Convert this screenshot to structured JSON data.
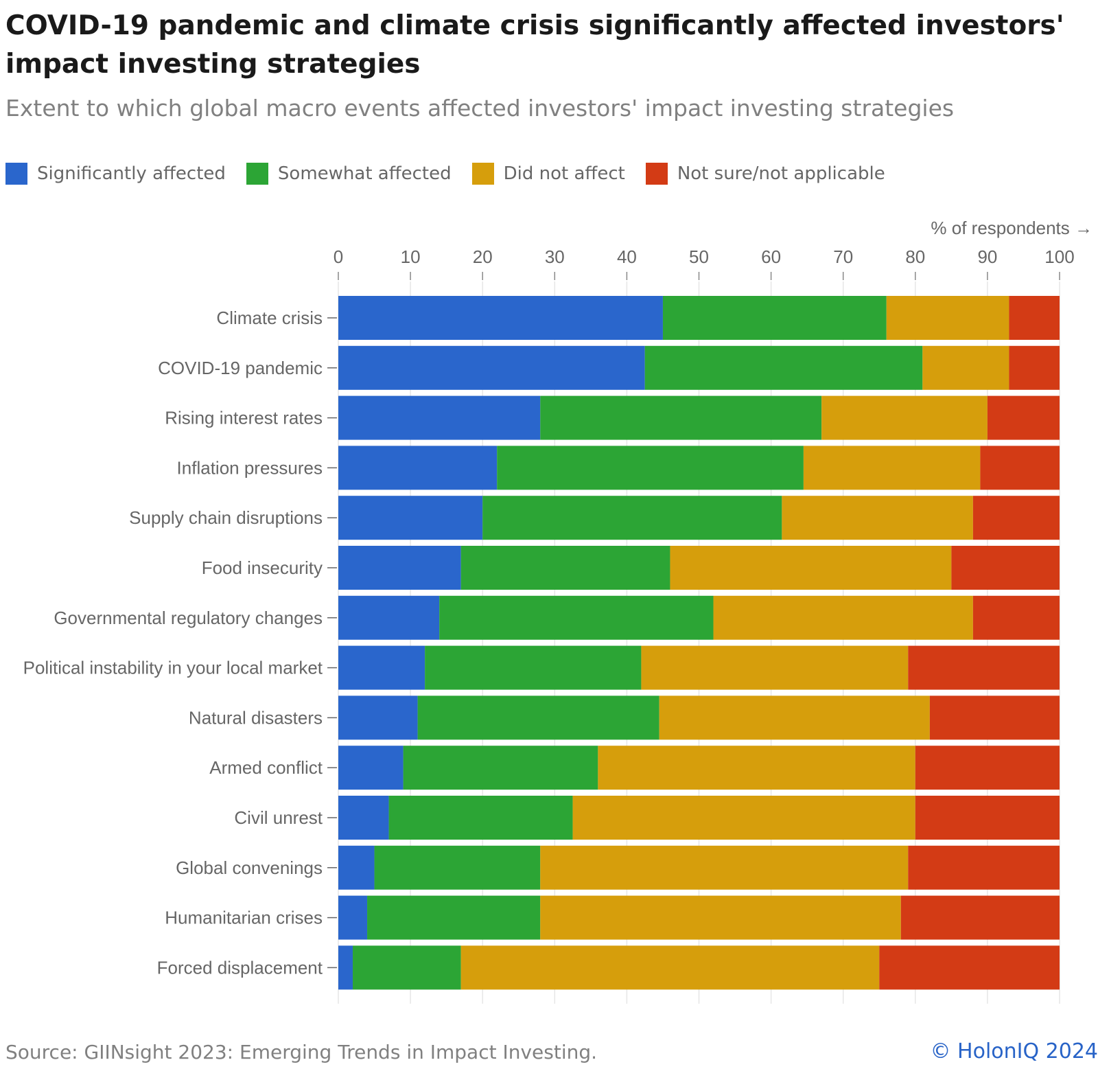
{
  "chart_data": {
    "type": "bar",
    "orientation": "horizontal",
    "stacked": true,
    "title": "COVID-19 pandemic and climate crisis significantly affected investors' impact investing strategies",
    "subtitle": "Extent to which global macro events affected investors' impact investing strategies",
    "xlabel": "% of respondents →",
    "xlim": [
      0,
      100
    ],
    "x_ticks": [
      "0",
      "10",
      "20",
      "30",
      "40",
      "50",
      "60",
      "70",
      "80",
      "90",
      "100"
    ],
    "grid": true,
    "legend_position": "top-left",
    "categories": [
      "Climate crisis",
      "COVID-19 pandemic",
      "Rising interest rates",
      "Inflation pressures",
      "Supply chain disruptions",
      "Food insecurity",
      "Governmental regulatory changes",
      "Political instability in your local market",
      "Natural disasters",
      "Armed conflict",
      "Civil unrest",
      "Global convenings",
      "Humanitarian crises",
      "Forced displacement"
    ],
    "series": [
      {
        "name": "Significantly affected",
        "color": "#2a66cc",
        "values": [
          45,
          42.5,
          28,
          22,
          20,
          17,
          14,
          12,
          11,
          9,
          7,
          5,
          4,
          2
        ]
      },
      {
        "name": "Somewhat affected",
        "color": "#2ca535",
        "values": [
          31,
          38.5,
          39,
          42.5,
          41.5,
          29,
          38,
          30,
          33.5,
          27,
          25.5,
          23,
          24,
          15
        ]
      },
      {
        "name": "Did not affect",
        "color": "#d69e0c",
        "values": [
          17,
          12,
          23,
          24.5,
          26.5,
          39,
          36,
          37,
          37.5,
          44,
          47.5,
          51,
          50,
          58
        ]
      },
      {
        "name": "Not sure/not applicable",
        "color": "#d33b15",
        "values": [
          7,
          7,
          10,
          11,
          12,
          15,
          12,
          21,
          18,
          20,
          20,
          21,
          22,
          25
        ]
      }
    ]
  },
  "footer": {
    "source": "Source: GIINsight 2023: Emerging Trends in Impact Investing.",
    "credit": "© HolonIQ 2024"
  }
}
